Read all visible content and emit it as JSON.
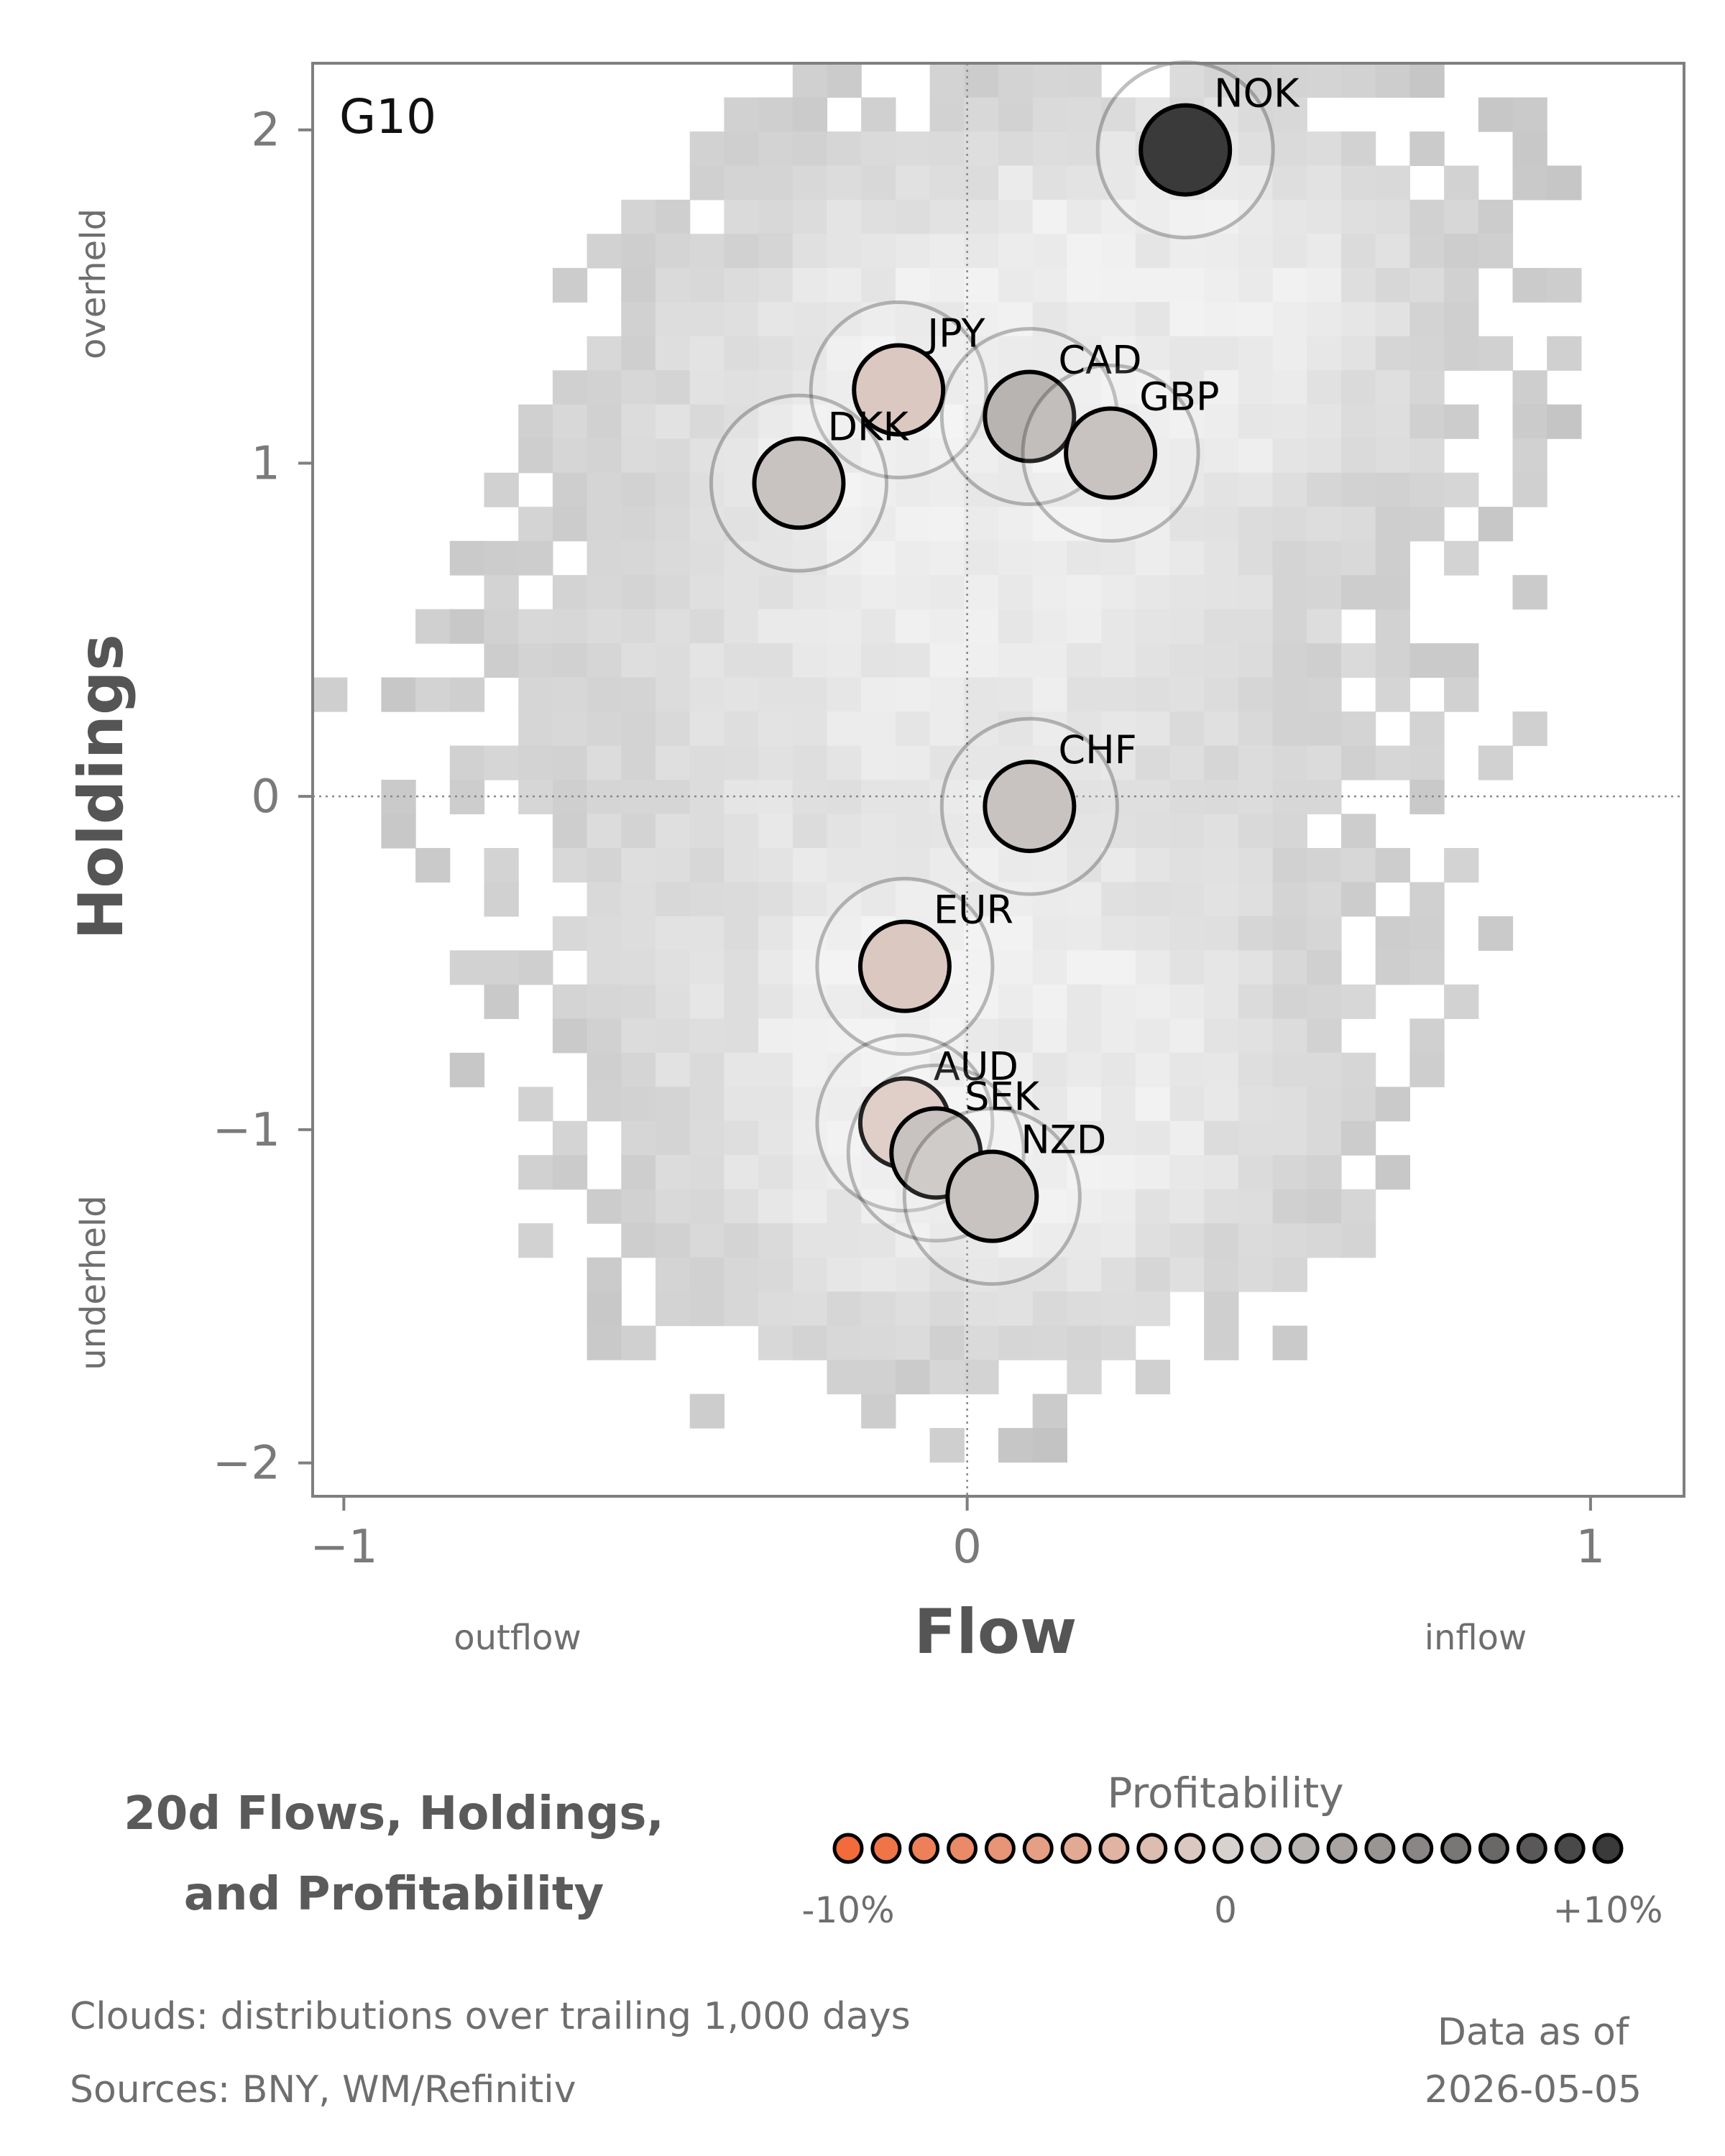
{
  "chart_data": {
    "type": "scatter",
    "panel_label": "G10",
    "xlabel": "Flow",
    "ylabel": "Holdings",
    "xlim": [
      -1.05,
      1.15
    ],
    "ylim": [
      -2.1,
      2.2
    ],
    "xticks": [
      -1,
      0,
      1
    ],
    "xtick_labels": [
      "−1",
      "0",
      "1"
    ],
    "yticks": [
      -2,
      -1,
      0,
      1,
      2
    ],
    "ytick_labels": [
      "−2",
      "−1",
      "0",
      "1",
      "2"
    ],
    "x_direction_labels": {
      "negative": "outflow",
      "positive": "inflow"
    },
    "y_direction_labels": {
      "positive": "overheld",
      "negative": "underheld"
    },
    "reference_lines": {
      "x": 0,
      "y": 0,
      "style": "dotted"
    },
    "grid": false,
    "background": "density clouds (grey 2D histogram)",
    "points": [
      {
        "label": "NOK",
        "x": 0.35,
        "y": 1.94,
        "profitability": 10
      },
      {
        "label": "JPY",
        "x": -0.11,
        "y": 1.22,
        "profitability": -1
      },
      {
        "label": "CAD",
        "x": 0.1,
        "y": 1.14,
        "profitability": 2
      },
      {
        "label": "GBP",
        "x": 0.23,
        "y": 1.03,
        "profitability": 1
      },
      {
        "label": "DKK",
        "x": -0.27,
        "y": 0.94,
        "profitability": 1
      },
      {
        "label": "CHF",
        "x": 0.1,
        "y": -0.03,
        "profitability": 1
      },
      {
        "label": "EUR",
        "x": -0.1,
        "y": -0.51,
        "profitability": -1
      },
      {
        "label": "AUD",
        "x": -0.1,
        "y": -0.98,
        "profitability": -1
      },
      {
        "label": "SEK",
        "x": -0.05,
        "y": -1.07,
        "profitability": 1
      },
      {
        "label": "NZD",
        "x": 0.04,
        "y": -1.2,
        "profitability": 1
      }
    ],
    "title": "20d Flows, Holdings,\nand Profitability",
    "title_lines": [
      "20d Flows, Holdings,",
      "and Profitability"
    ],
    "color_scale": {
      "title": "Profitability",
      "min": -10,
      "max": 10,
      "tick_labels": [
        "-10%",
        "0",
        "+10%"
      ],
      "steps": 21,
      "low_color": "#f26b3a",
      "mid_color": "#d8d2cf",
      "high_color": "#3a3a3a"
    }
  },
  "footer": {
    "clouds_note": "Clouds:  distributions over trailing 1,000 days",
    "sources_note": "Sources:  BNY, WM/Refinitiv",
    "data_as_of_label": "Data as of",
    "data_as_of_date": "2026-05-05"
  }
}
